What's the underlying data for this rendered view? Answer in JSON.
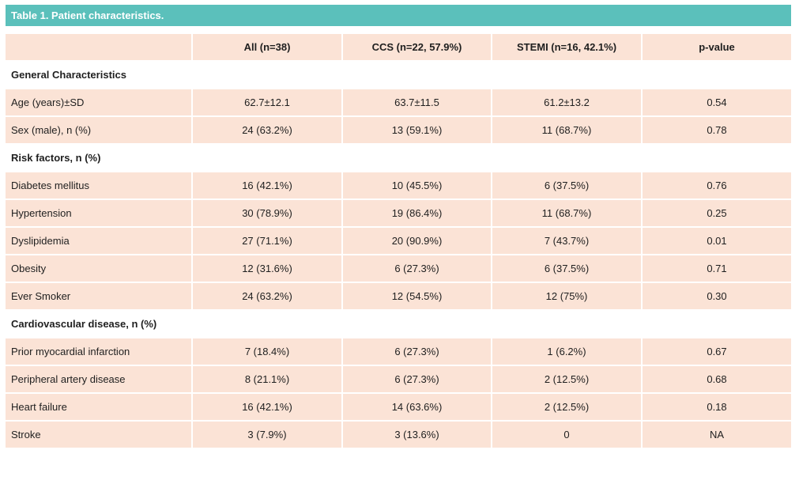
{
  "table": {
    "title": "Table 1. Patient characteristics.",
    "headers": [
      "",
      "All (n=38)",
      "CCS (n=22, 57.9%)",
      "STEMI (n=16, 42.1%)",
      "p-value"
    ],
    "sections": [
      {
        "title": "General Characteristics",
        "rows": [
          {
            "label": "Age (years)±SD",
            "values": [
              "62.7±12.1",
              "63.7±11.5",
              "61.2±13.2",
              "0.54"
            ]
          },
          {
            "label": "Sex (male), n (%)",
            "values": [
              "24 (63.2%)",
              "13 (59.1%)",
              "11 (68.7%)",
              "0.78"
            ]
          }
        ]
      },
      {
        "title": "Risk factors, n (%)",
        "rows": [
          {
            "label": "Diabetes mellitus",
            "values": [
              "16 (42.1%)",
              "10 (45.5%)",
              "6 (37.5%)",
              "0.76"
            ]
          },
          {
            "label": "Hypertension",
            "values": [
              "30 (78.9%)",
              "19 (86.4%)",
              "11 (68.7%)",
              "0.25"
            ]
          },
          {
            "label": "Dyslipidemia",
            "values": [
              "27 (71.1%)",
              "20 (90.9%)",
              "7 (43.7%)",
              "0.01"
            ]
          },
          {
            "label": "Obesity",
            "values": [
              "12 (31.6%)",
              "6 (27.3%)",
              "6 (37.5%)",
              "0.71"
            ]
          },
          {
            "label": "Ever Smoker",
            "values": [
              "24 (63.2%)",
              "12 (54.5%)",
              "12 (75%)",
              "0.30"
            ]
          }
        ]
      },
      {
        "title": "Cardiovascular disease, n (%)",
        "rows": [
          {
            "label": "Prior myocardial infarction",
            "values": [
              "7 (18.4%)",
              "6 (27.3%)",
              "1 (6.2%)",
              "0.67"
            ]
          },
          {
            "label": "Peripheral artery disease",
            "values": [
              "8 (21.1%)",
              "6 (27.3%)",
              "2 (12.5%)",
              "0.68"
            ]
          },
          {
            "label": "Heart failure",
            "values": [
              "16 (42.1%)",
              "14 (63.6%)",
              "2 (12.5%)",
              "0.18"
            ]
          },
          {
            "label": "Stroke",
            "values": [
              "3 (7.9%)",
              "3 (13.6%)",
              "0",
              "NA"
            ]
          }
        ]
      }
    ]
  },
  "colors": {
    "title_bar": "#5bc0bb",
    "row_shade": "#fbe3d6"
  }
}
